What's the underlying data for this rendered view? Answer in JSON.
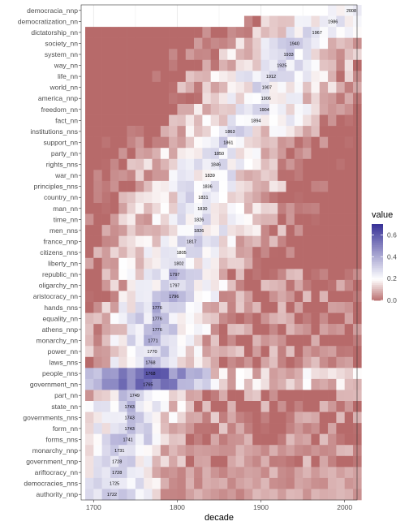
{
  "chart_data": {
    "type": "heatmap",
    "xlabel": "decade",
    "legend_title": "value",
    "legend_position": "right",
    "x_ticks": [
      1700,
      1800,
      1900,
      2000
    ],
    "legend_ticks": [
      0.0,
      0.2,
      0.4,
      0.6
    ],
    "legend_tick_labels": [
      "0.0",
      "0.2",
      "0.4",
      "0.6"
    ],
    "value_range": [
      0.0,
      0.7
    ],
    "decade_range": [
      1690,
      2010
    ],
    "colors": {
      "low": "#b76a6a",
      "mid": "#ffffff",
      "high": "#3a3498",
      "panel": "#ffffff",
      "grid": "#ebebeb",
      "border": "#333333"
    },
    "rows": [
      {
        "label": "democracia_nnp",
        "year": 2008,
        "start": 1970
      },
      {
        "label": "democratization_nn",
        "year": 1986,
        "start": 1880
      },
      {
        "label": "dictatorship_nn",
        "year": 1967,
        "start": 1690
      },
      {
        "label": "society_nn",
        "year": 1940,
        "start": 1690
      },
      {
        "label": "system_nn",
        "year": 1933,
        "start": 1690
      },
      {
        "label": "way_nn",
        "year": 1925,
        "start": 1690
      },
      {
        "label": "life_nn",
        "year": 1912,
        "start": 1690
      },
      {
        "label": "world_nn",
        "year": 1907,
        "start": 1690
      },
      {
        "label": "america_nnp",
        "year": 1906,
        "start": 1690
      },
      {
        "label": "freedom_nn",
        "year": 1904,
        "start": 1690
      },
      {
        "label": "fact_nn",
        "year": 1894,
        "start": 1690
      },
      {
        "label": "institutions_nns",
        "year": 1863,
        "start": 1690
      },
      {
        "label": "support_nn",
        "year": 1861,
        "start": 1690
      },
      {
        "label": "party_nn",
        "year": 1850,
        "start": 1690
      },
      {
        "label": "rights_nns",
        "year": 1846,
        "start": 1690
      },
      {
        "label": "war_nn",
        "year": 1839,
        "start": 1690
      },
      {
        "label": "principles_nns",
        "year": 1836,
        "start": 1690
      },
      {
        "label": "country_nn",
        "year": 1831,
        "start": 1690
      },
      {
        "label": "man_nn",
        "year": 1830,
        "start": 1690
      },
      {
        "label": "time_nn",
        "year": 1826,
        "start": 1690
      },
      {
        "label": "men_nns",
        "year": 1826,
        "start": 1690
      },
      {
        "label": "france_nnp",
        "year": 1817,
        "start": 1690
      },
      {
        "label": "citizens_nns",
        "year": 1805,
        "start": 1690
      },
      {
        "label": "liberty_nn",
        "year": 1802,
        "start": 1690
      },
      {
        "label": "republic_nn",
        "year": 1797,
        "start": 1690
      },
      {
        "label": "oligarchy_nn",
        "year": 1797,
        "start": 1690
      },
      {
        "label": "aristocracy_nn",
        "year": 1796,
        "start": 1690
      },
      {
        "label": "hands_nns",
        "year": 1776,
        "start": 1690
      },
      {
        "label": "equality_nn",
        "year": 1776,
        "start": 1690
      },
      {
        "label": "athens_nnp",
        "year": 1776,
        "start": 1690
      },
      {
        "label": "monarchy_nn",
        "year": 1771,
        "start": 1690
      },
      {
        "label": "power_nn",
        "year": 1770,
        "start": 1690
      },
      {
        "label": "laws_nns",
        "year": 1768,
        "start": 1690
      },
      {
        "label": "people_nns",
        "year": 1768,
        "start": 1690
      },
      {
        "label": "government_nn",
        "year": 1765,
        "start": 1690
      },
      {
        "label": "part_nn",
        "year": 1749,
        "start": 1690
      },
      {
        "label": "state_nn",
        "year": 1743,
        "start": 1690
      },
      {
        "label": "governments_nns",
        "year": 1743,
        "start": 1690
      },
      {
        "label": "form_nn",
        "year": 1743,
        "start": 1690
      },
      {
        "label": "forms_nns",
        "year": 1741,
        "start": 1690
      },
      {
        "label": "monarchy_nnp",
        "year": 1731,
        "start": 1690
      },
      {
        "label": "government_nnp",
        "year": 1728,
        "start": 1690
      },
      {
        "label": "ariftocracy_nn",
        "year": 1728,
        "start": 1690
      },
      {
        "label": "democracies_nns",
        "year": 1725,
        "start": 1690
      },
      {
        "label": "authority_nnp",
        "year": 1722,
        "start": 1690
      }
    ]
  }
}
